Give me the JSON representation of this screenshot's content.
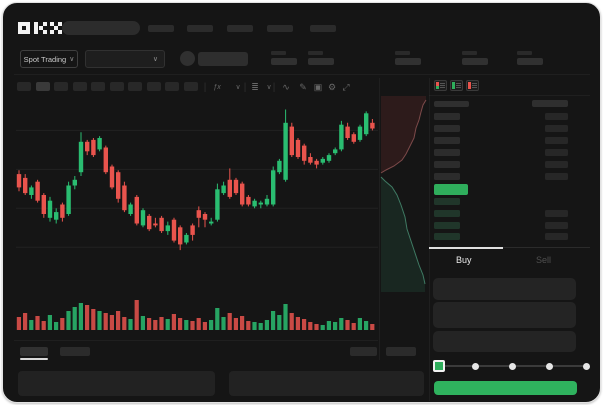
{
  "app": {
    "logo": "OKX"
  },
  "header": {
    "nav_item_count": 5,
    "nav_positions": [
      148,
      187,
      227,
      267,
      310
    ]
  },
  "subheader": {
    "market_selector_label": "Spot Trading",
    "chevron": "∨",
    "stat_group_positions": [
      271,
      308,
      395,
      462,
      517
    ]
  },
  "chart_toolbar": {
    "timeframe_count": 10,
    "active_timeframe_index": 1,
    "tools": [
      {
        "name": "separator",
        "glyph": "|"
      },
      {
        "name": "indicators-icon",
        "glyph": "ƒx"
      },
      {
        "name": "chevron-down-icon",
        "glyph": "∨"
      },
      {
        "name": "separator",
        "glyph": "|"
      },
      {
        "name": "candle-type-icon",
        "glyph": "≣"
      },
      {
        "name": "chevron-down-icon",
        "glyph": "∨"
      },
      {
        "name": "separator",
        "glyph": "|"
      },
      {
        "name": "line-tool-icon",
        "glyph": "∿"
      },
      {
        "name": "draw-tool-icon",
        "glyph": "✎"
      },
      {
        "name": "screenshot-icon",
        "glyph": "▣"
      },
      {
        "name": "settings-icon",
        "glyph": "⚙"
      },
      {
        "name": "fullscreen-icon",
        "glyph": "⤢"
      }
    ]
  },
  "order_book": {
    "view_modes": [
      {
        "name": "order-book-all-icon",
        "bars": [
          "#e9544d",
          "#2fae5c"
        ]
      },
      {
        "name": "order-book-bids-icon",
        "bars": [
          "#2fae5c",
          "#2fae5c"
        ]
      },
      {
        "name": "order-book-asks-icon",
        "bars": [
          "#e9544d",
          "#e9544d"
        ]
      }
    ],
    "ask_row_count": 6,
    "bid_row_count": 4,
    "bid_amount_flags": [
      0,
      1,
      1,
      1
    ],
    "tabs": {
      "buy": "Buy",
      "sell": "Sell",
      "active": "buy"
    },
    "slider": {
      "dot_count": 5,
      "active_index": 0
    }
  },
  "colors": {
    "background": "#151515",
    "candle_up": "#2abd71",
    "candle_down": "#e9544d",
    "spread_bar": "#2fae5c",
    "buy_button": "#2fb25e",
    "tab_underline": "#e0e0e0",
    "depth_ask_line": "#7d4a4a",
    "depth_bid_line": "#3f7a63",
    "depth_ask_fill": "rgba(130,52,52,0.22)",
    "depth_bid_fill": "rgba(42,122,86,0.18)"
  },
  "chart_data": {
    "type": "candlestick",
    "title": "",
    "value_scale": [
      0,
      100
    ],
    "grid_values": [
      84,
      63.5,
      43,
      22.5
    ],
    "candles": [
      [
        61,
        63,
        52,
        54
      ],
      [
        59,
        61,
        50,
        51
      ],
      [
        50,
        55,
        48,
        54
      ],
      [
        57,
        58,
        46,
        47
      ],
      [
        50,
        51,
        38,
        40
      ],
      [
        38,
        49,
        36,
        47
      ],
      [
        37,
        43,
        35,
        41
      ],
      [
        45,
        46,
        36,
        38
      ],
      [
        40,
        57,
        39,
        55
      ],
      [
        55,
        60,
        53,
        58
      ],
      [
        62,
        83,
        60,
        78
      ],
      [
        78,
        79,
        71,
        73
      ],
      [
        79,
        80,
        70,
        71
      ],
      [
        74,
        81,
        73,
        80
      ],
      [
        75,
        76,
        61,
        62
      ],
      [
        65,
        66,
        53,
        54
      ],
      [
        62,
        63,
        46,
        48
      ],
      [
        55,
        57,
        41,
        42
      ],
      [
        40,
        46,
        39,
        45
      ],
      [
        49,
        50,
        34,
        35
      ],
      [
        34,
        43,
        33,
        42
      ],
      [
        39,
        40,
        31,
        32
      ],
      [
        35,
        38,
        33,
        34
      ],
      [
        38,
        39,
        30,
        31
      ],
      [
        31,
        36,
        29,
        34
      ],
      [
        37,
        38,
        25,
        26
      ],
      [
        33,
        34,
        21,
        24
      ],
      [
        25,
        30,
        24,
        29
      ],
      [
        34,
        35,
        26,
        29
      ],
      [
        42,
        44,
        33,
        38
      ],
      [
        40,
        41,
        33,
        37
      ],
      [
        35,
        38,
        34,
        36
      ],
      [
        37,
        56,
        36,
        53
      ],
      [
        51,
        57,
        50,
        55
      ],
      [
        58,
        64,
        48,
        49
      ],
      [
        58,
        59,
        50,
        51
      ],
      [
        56,
        57,
        44,
        45
      ],
      [
        49,
        50,
        44,
        45
      ],
      [
        44,
        48,
        43,
        47
      ],
      [
        45,
        47,
        43,
        46
      ],
      [
        45,
        50,
        44,
        48
      ],
      [
        45,
        65,
        44,
        63
      ],
      [
        62,
        69,
        61,
        68
      ],
      [
        58,
        95,
        57,
        88
      ],
      [
        86,
        88,
        70,
        71
      ],
      [
        79,
        80,
        69,
        70
      ],
      [
        76,
        77,
        66,
        68
      ],
      [
        70,
        72,
        66,
        67
      ],
      [
        68,
        69,
        64,
        66
      ],
      [
        67,
        70,
        66,
        69
      ],
      [
        68,
        72,
        67,
        71
      ],
      [
        72,
        75,
        71,
        74
      ],
      [
        74,
        89,
        73,
        87
      ],
      [
        86,
        88,
        79,
        80
      ],
      [
        82,
        83,
        77,
        78
      ],
      [
        79,
        87,
        78,
        86
      ],
      [
        82,
        94,
        81,
        93
      ],
      [
        88,
        90,
        84,
        85
      ]
    ],
    "volume": [
      13,
      17,
      10,
      14,
      9,
      15,
      8,
      12,
      19,
      23,
      27,
      25,
      21,
      19,
      17,
      15,
      19,
      13,
      11,
      30,
      14,
      12,
      10,
      13,
      11,
      16,
      12,
      10,
      9,
      12,
      8,
      10,
      22,
      13,
      17,
      12,
      14,
      9,
      8,
      7,
      10,
      19,
      15,
      26,
      17,
      13,
      11,
      8,
      6,
      5,
      9,
      8,
      12,
      10,
      7,
      12,
      9,
      6
    ],
    "depth": {
      "asks": [
        [
          46,
          4
        ],
        [
          43,
          9
        ],
        [
          41,
          16
        ],
        [
          39,
          24
        ],
        [
          36,
          32
        ],
        [
          34,
          42
        ],
        [
          30,
          50
        ],
        [
          26,
          58
        ],
        [
          22,
          64
        ],
        [
          14,
          70
        ],
        [
          6,
          74
        ],
        [
          1,
          77
        ]
      ],
      "bids": [
        [
          1,
          81
        ],
        [
          5,
          85
        ],
        [
          12,
          91
        ],
        [
          17,
          99
        ],
        [
          21,
          109
        ],
        [
          25,
          121
        ],
        [
          27,
          133
        ],
        [
          31,
          145
        ],
        [
          35,
          157
        ],
        [
          39,
          169
        ],
        [
          43,
          179
        ],
        [
          45,
          188
        ]
      ]
    }
  }
}
